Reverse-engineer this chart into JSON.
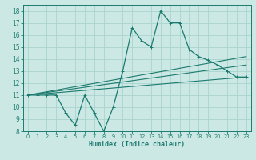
{
  "background_color": "#cce8e5",
  "line_color": "#1a7a6e",
  "grid_color": "#aad4cf",
  "xlabel": "Humidex (Indice chaleur)",
  "xlim": [
    -0.5,
    23.5
  ],
  "ylim": [
    8,
    18.5
  ],
  "xticks": [
    0,
    1,
    2,
    3,
    4,
    5,
    6,
    7,
    8,
    9,
    10,
    11,
    12,
    13,
    14,
    15,
    16,
    17,
    18,
    19,
    20,
    21,
    22,
    23
  ],
  "yticks": [
    8,
    9,
    10,
    11,
    12,
    13,
    14,
    15,
    16,
    17,
    18
  ],
  "series": [
    {
      "x": [
        0,
        1,
        2,
        3,
        4,
        5,
        6,
        7,
        8,
        9,
        10,
        11,
        12,
        13,
        14,
        15,
        16,
        17,
        18,
        19,
        20,
        21,
        22,
        23
      ],
      "y": [
        11,
        11,
        11,
        11,
        9.5,
        8.5,
        11,
        9.5,
        8,
        10,
        13,
        16.6,
        15.5,
        15,
        18,
        17,
        17,
        14.8,
        14.2,
        13.9,
        13.5,
        13,
        12.5,
        12.5
      ]
    },
    {
      "x": [
        0,
        23
      ],
      "y": [
        11,
        12.5
      ]
    },
    {
      "x": [
        0,
        23
      ],
      "y": [
        11,
        13.5
      ]
    },
    {
      "x": [
        0,
        23
      ],
      "y": [
        11,
        14.2
      ]
    }
  ]
}
